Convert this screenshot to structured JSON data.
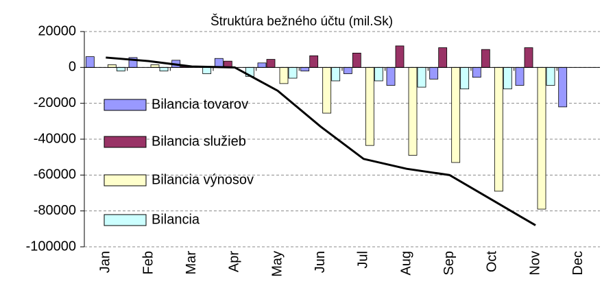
{
  "chart_data": {
    "type": "bar",
    "title": "Štruktúra bežného účtu (mil.Sk)",
    "categories": [
      "Jan",
      "Feb",
      "Mar",
      "Apr",
      "May",
      "Jun",
      "Jul",
      "Aug",
      "Sep",
      "Oct",
      "Nov",
      "Dec"
    ],
    "series": [
      {
        "name": "Bilancia tovarov",
        "color": "#9999ff",
        "values": [
          6000,
          5500,
          4000,
          5000,
          2500,
          -2000,
          -3500,
          -10000,
          -6500,
          -5500,
          -10000,
          -22000
        ]
      },
      {
        "name": "Bilancia služieb",
        "color": "#993366",
        "values": [
          0,
          0,
          500,
          3500,
          4500,
          6500,
          8000,
          12000,
          11000,
          10000,
          11000,
          0
        ]
      },
      {
        "name": "Bilancia výnosov",
        "color": "#ffffcc",
        "values": [
          1500,
          1500,
          0,
          0,
          -9000,
          -25500,
          -43500,
          -49000,
          -53000,
          -69000,
          -79000,
          0
        ]
      },
      {
        "name": "Bilancia",
        "color": "#ccffff",
        "values": [
          -2000,
          -2000,
          -3500,
          -5000,
          -6000,
          -7500,
          -7500,
          -11000,
          -12000,
          -12000,
          -10000,
          0
        ]
      },
      {
        "type": "line",
        "color": "#000000",
        "values": [
          5500,
          3500,
          500,
          0,
          -13000,
          -33000,
          -51000,
          -56500,
          -60000,
          -74000,
          -88000,
          null
        ]
      }
    ],
    "ylim": [
      -100000,
      20000
    ],
    "yticks": [
      -100000,
      -80000,
      -60000,
      -40000,
      -20000,
      0,
      20000
    ],
    "grid": true,
    "legend": "left"
  }
}
